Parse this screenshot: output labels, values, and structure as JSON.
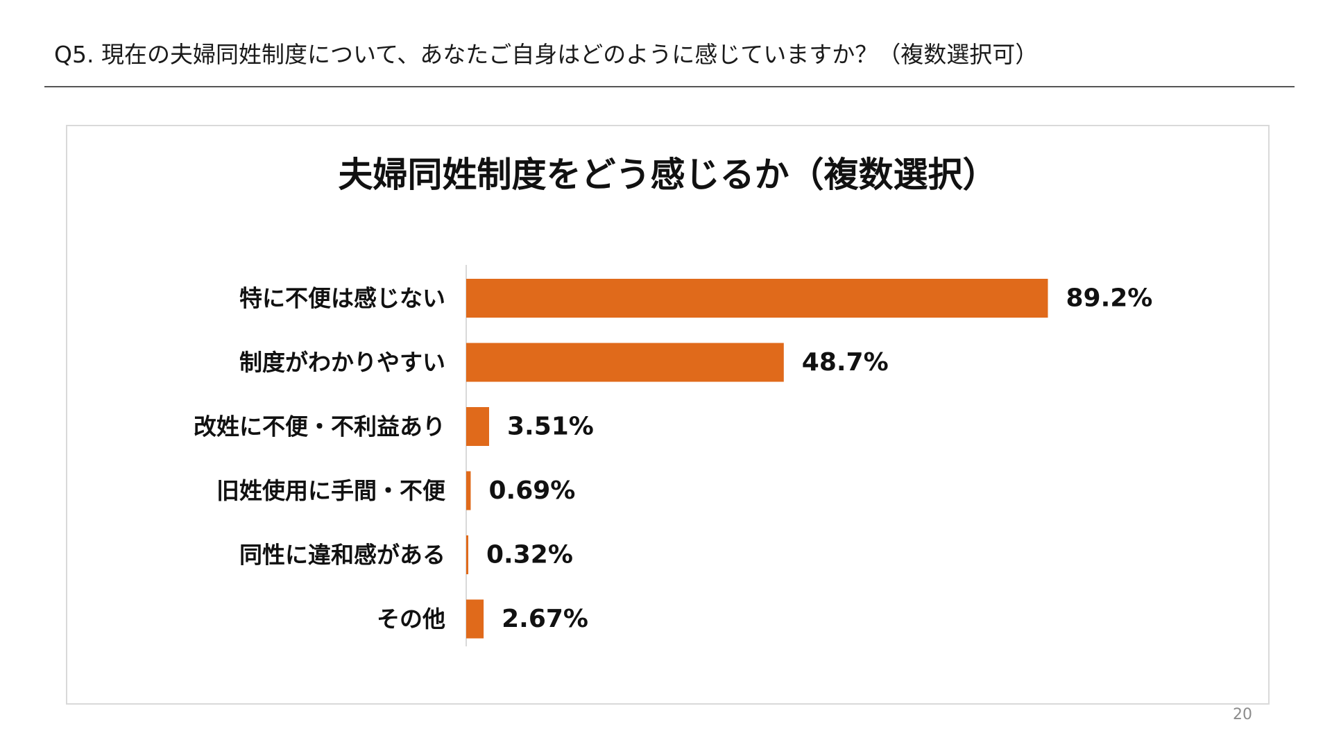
{
  "header": {
    "question": "Q5.  現在の夫婦同姓制度について、あなたご自身はどのように感じていますか？（複数選択可）"
  },
  "colors": {
    "bar": "#E06A1B",
    "axis": "#d9d9d9",
    "panel_border": "#d9d9d9"
  },
  "chart_data": {
    "type": "bar",
    "orientation": "horizontal",
    "title": "夫婦同姓制度をどう感じるか（複数選択）",
    "categories": [
      "特に不便は感じない",
      "制度がわかりやすい",
      "改姓に不便・不利益あり",
      "旧姓使用に手間・不便",
      "同性に違和感がある",
      "その他"
    ],
    "values": [
      89.2,
      48.7,
      3.51,
      0.69,
      0.32,
      2.67
    ],
    "value_labels": [
      "89.2%",
      "48.7%",
      "3.51%",
      "0.69%",
      "0.32%",
      "2.67%"
    ],
    "xlim": [
      0,
      100
    ],
    "unit": "%",
    "grid": false,
    "legend": "none"
  },
  "footer": {
    "page_number": "20"
  }
}
